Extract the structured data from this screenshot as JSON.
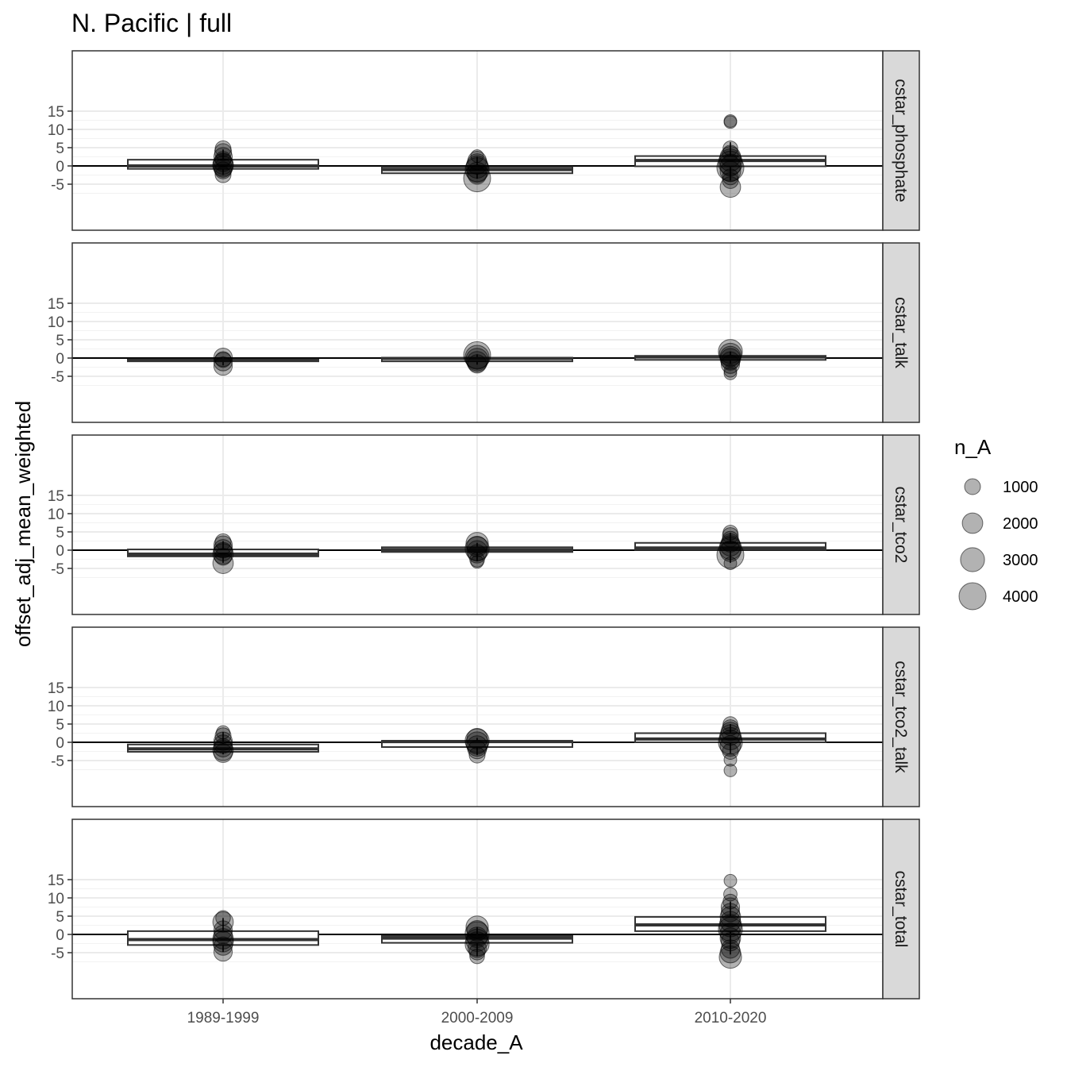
{
  "chart_data": {
    "type": "box-and-scatter (faceted)",
    "title": "N. Pacific | full",
    "xlabel": "decade_A",
    "ylabel": "offset_adj_mean_weighted",
    "categories": [
      "1989-1999",
      "2000-2009",
      "2010-2020"
    ],
    "ylim": [
      -8.5,
      15.5
    ],
    "y_ticks": [
      -5,
      0,
      5,
      10,
      15
    ],
    "y_tick_labels": [
      "-5",
      "0",
      "5",
      "10",
      "15"
    ],
    "reference_line_y": 0,
    "grid": true,
    "legend": {
      "title": "n_A",
      "position": "right",
      "entries": [
        {
          "label": "1000",
          "value": 1000
        },
        {
          "label": "2000",
          "value": 2000
        },
        {
          "label": "3000",
          "value": 3000
        },
        {
          "label": "4000",
          "value": 4000
        }
      ]
    },
    "facets": [
      {
        "name": "cstar_phosphate",
        "boxes": [
          {
            "category": "1989-1999",
            "q1": -0.8,
            "median": 0.0,
            "q3": 1.7,
            "whisker_low": -2.5,
            "whisker_high": 4.5
          },
          {
            "category": "2000-2009",
            "q1": -2.0,
            "median": -1.0,
            "q3": -0.3,
            "whisker_low": -3.5,
            "whisker_high": 2.5
          },
          {
            "category": "2010-2020",
            "q1": -0.1,
            "median": 1.5,
            "q3": 2.7,
            "whisker_low": -4.0,
            "whisker_high": 6.5
          }
        ],
        "points": [
          {
            "category": "1989-1999",
            "y": 4.7,
            "n": 1000
          },
          {
            "category": "1989-1999",
            "y": 3.8,
            "n": 1200
          },
          {
            "category": "1989-1999",
            "y": 2.5,
            "n": 1500
          },
          {
            "category": "1989-1999",
            "y": 1.8,
            "n": 1000
          },
          {
            "category": "1989-1999",
            "y": 1.0,
            "n": 1500
          },
          {
            "category": "1989-1999",
            "y": 0.5,
            "n": 2000
          },
          {
            "category": "1989-1999",
            "y": 0.0,
            "n": 2000
          },
          {
            "category": "1989-1999",
            "y": -0.6,
            "n": 1500
          },
          {
            "category": "1989-1999",
            "y": -1.2,
            "n": 1200
          },
          {
            "category": "1989-1999",
            "y": -2.4,
            "n": 1000
          },
          {
            "category": "2000-2009",
            "y": 2.7,
            "n": 500
          },
          {
            "category": "2000-2009",
            "y": 1.5,
            "n": 1500
          },
          {
            "category": "2000-2009",
            "y": 0.5,
            "n": 2000
          },
          {
            "category": "2000-2009",
            "y": -0.3,
            "n": 2500
          },
          {
            "category": "2000-2009",
            "y": -1.0,
            "n": 3000
          },
          {
            "category": "2000-2009",
            "y": -1.8,
            "n": 2000
          },
          {
            "category": "2000-2009",
            "y": -2.5,
            "n": 1500
          },
          {
            "category": "2000-2009",
            "y": -3.4,
            "n": 4000
          },
          {
            "category": "2010-2020",
            "y": 12.3,
            "n": 500
          },
          {
            "category": "2010-2020",
            "y": 12.0,
            "n": 500
          },
          {
            "category": "2010-2020",
            "y": 4.8,
            "n": 800
          },
          {
            "category": "2010-2020",
            "y": 3.5,
            "n": 1000
          },
          {
            "category": "2010-2020",
            "y": 2.5,
            "n": 2000
          },
          {
            "category": "2010-2020",
            "y": 1.6,
            "n": 2500
          },
          {
            "category": "2010-2020",
            "y": 0.8,
            "n": 3000
          },
          {
            "category": "2010-2020",
            "y": 0.0,
            "n": 2000
          },
          {
            "category": "2010-2020",
            "y": -0.5,
            "n": 4000
          },
          {
            "category": "2010-2020",
            "y": -1.5,
            "n": 2000
          },
          {
            "category": "2010-2020",
            "y": -3.0,
            "n": 1000
          },
          {
            "category": "2010-2020",
            "y": -4.0,
            "n": 1000
          },
          {
            "category": "2010-2020",
            "y": -5.8,
            "n": 2000
          }
        ]
      },
      {
        "name": "cstar_talk",
        "boxes": [
          {
            "category": "1989-1999",
            "q1": -0.9,
            "median": -0.6,
            "q3": -0.4,
            "whisker_low": -2.0,
            "whisker_high": 0.3
          },
          {
            "category": "2000-2009",
            "q1": -0.9,
            "median": -0.1,
            "q3": 0.1,
            "whisker_low": -1.8,
            "whisker_high": 1.0
          },
          {
            "category": "2010-2020",
            "q1": -0.5,
            "median": 0.3,
            "q3": 0.6,
            "whisker_low": -1.6,
            "whisker_high": 1.8
          }
        ],
        "points": [
          {
            "category": "1989-1999",
            "y": 0.2,
            "n": 1500
          },
          {
            "category": "1989-1999",
            "y": -0.4,
            "n": 1000
          },
          {
            "category": "1989-1999",
            "y": -1.0,
            "n": 1500
          },
          {
            "category": "1989-1999",
            "y": -2.2,
            "n": 1500
          },
          {
            "category": "2000-2009",
            "y": 0.8,
            "n": 4000
          },
          {
            "category": "2000-2009",
            "y": 0.2,
            "n": 3000
          },
          {
            "category": "2000-2009",
            "y": -0.4,
            "n": 2500
          },
          {
            "category": "2000-2009",
            "y": -1.0,
            "n": 2000
          },
          {
            "category": "2000-2009",
            "y": -1.6,
            "n": 1500
          },
          {
            "category": "2010-2020",
            "y": 1.8,
            "n": 3000
          },
          {
            "category": "2010-2020",
            "y": 1.0,
            "n": 2500
          },
          {
            "category": "2010-2020",
            "y": 0.4,
            "n": 2000
          },
          {
            "category": "2010-2020",
            "y": -0.2,
            "n": 2000
          },
          {
            "category": "2010-2020",
            "y": -0.8,
            "n": 1500
          },
          {
            "category": "2010-2020",
            "y": -1.7,
            "n": 1500
          },
          {
            "category": "2010-2020",
            "y": -3.5,
            "n": 500
          },
          {
            "category": "2010-2020",
            "y": -4.2,
            "n": 500
          }
        ]
      },
      {
        "name": "cstar_tco2",
        "boxes": [
          {
            "category": "1989-1999",
            "q1": -1.7,
            "median": -1.1,
            "q3": 0.2,
            "whisker_low": -3.5,
            "whisker_high": 2.5
          },
          {
            "category": "2000-2009",
            "q1": -0.5,
            "median": 0.1,
            "q3": 0.8,
            "whisker_low": -3.0,
            "whisker_high": 2.0
          },
          {
            "category": "2010-2020",
            "q1": 0.1,
            "median": 0.6,
            "q3": 2.0,
            "whisker_low": -3.5,
            "whisker_high": 4.8
          }
        ],
        "points": [
          {
            "category": "1989-1999",
            "y": 2.3,
            "n": 1000
          },
          {
            "category": "1989-1999",
            "y": 1.4,
            "n": 1500
          },
          {
            "category": "1989-1999",
            "y": 0.4,
            "n": 1500
          },
          {
            "category": "1989-1999",
            "y": -0.4,
            "n": 1500
          },
          {
            "category": "1989-1999",
            "y": -1.0,
            "n": 2000
          },
          {
            "category": "1989-1999",
            "y": -1.8,
            "n": 1200
          },
          {
            "category": "1989-1999",
            "y": -3.6,
            "n": 2000
          },
          {
            "category": "2000-2009",
            "y": 1.8,
            "n": 2500
          },
          {
            "category": "2000-2009",
            "y": 1.0,
            "n": 2000
          },
          {
            "category": "2000-2009",
            "y": 0.4,
            "n": 3000
          },
          {
            "category": "2000-2009",
            "y": -0.2,
            "n": 2000
          },
          {
            "category": "2000-2009",
            "y": -1.0,
            "n": 1500
          },
          {
            "category": "2000-2009",
            "y": -2.6,
            "n": 800
          },
          {
            "category": "2000-2009",
            "y": -3.2,
            "n": 500
          },
          {
            "category": "2010-2020",
            "y": 4.8,
            "n": 800
          },
          {
            "category": "2010-2020",
            "y": 4.0,
            "n": 1000
          },
          {
            "category": "2010-2020",
            "y": 3.0,
            "n": 1000
          },
          {
            "category": "2010-2020",
            "y": 2.0,
            "n": 1500
          },
          {
            "category": "2010-2020",
            "y": 1.2,
            "n": 2000
          },
          {
            "category": "2010-2020",
            "y": 0.5,
            "n": 2500
          },
          {
            "category": "2010-2020",
            "y": -0.3,
            "n": 2000
          },
          {
            "category": "2010-2020",
            "y": -1.3,
            "n": 4000
          },
          {
            "category": "2010-2020",
            "y": -3.6,
            "n": 500
          }
        ]
      },
      {
        "name": "cstar_tco2_talk",
        "boxes": [
          {
            "category": "1989-1999",
            "q1": -2.6,
            "median": -1.8,
            "q3": -0.6,
            "whisker_low": -3.3,
            "whisker_high": 2.8
          },
          {
            "category": "2000-2009",
            "q1": -1.3,
            "median": 0.2,
            "q3": 0.4,
            "whisker_low": -3.5,
            "whisker_high": 1.2
          },
          {
            "category": "2010-2020",
            "q1": 0.0,
            "median": 0.9,
            "q3": 2.5,
            "whisker_low": -3.0,
            "whisker_high": 5.0
          }
        ],
        "points": [
          {
            "category": "1989-1999",
            "y": 2.7,
            "n": 600
          },
          {
            "category": "1989-1999",
            "y": 1.8,
            "n": 1000
          },
          {
            "category": "1989-1999",
            "y": 0.3,
            "n": 1500
          },
          {
            "category": "1989-1999",
            "y": -0.5,
            "n": 1500
          },
          {
            "category": "1989-1999",
            "y": -1.5,
            "n": 1500
          },
          {
            "category": "1989-1999",
            "y": -2.2,
            "n": 2000
          },
          {
            "category": "1989-1999",
            "y": -3.0,
            "n": 1500
          },
          {
            "category": "2000-2009",
            "y": 1.0,
            "n": 2000
          },
          {
            "category": "2000-2009",
            "y": 0.4,
            "n": 3000
          },
          {
            "category": "2000-2009",
            "y": -0.2,
            "n": 2500
          },
          {
            "category": "2000-2009",
            "y": -1.0,
            "n": 2000
          },
          {
            "category": "2000-2009",
            "y": -2.0,
            "n": 1500
          },
          {
            "category": "2000-2009",
            "y": -3.5,
            "n": 1000
          },
          {
            "category": "2010-2020",
            "y": 5.0,
            "n": 800
          },
          {
            "category": "2010-2020",
            "y": 4.0,
            "n": 1000
          },
          {
            "category": "2010-2020",
            "y": 3.0,
            "n": 1500
          },
          {
            "category": "2010-2020",
            "y": 2.0,
            "n": 2000
          },
          {
            "category": "2010-2020",
            "y": 1.0,
            "n": 2500
          },
          {
            "category": "2010-2020",
            "y": 0.0,
            "n": 3000
          },
          {
            "category": "2010-2020",
            "y": -1.0,
            "n": 2000
          },
          {
            "category": "2010-2020",
            "y": -2.5,
            "n": 1000
          },
          {
            "category": "2010-2020",
            "y": -4.8,
            "n": 500
          },
          {
            "category": "2010-2020",
            "y": -7.7,
            "n": 500
          }
        ]
      },
      {
        "name": "cstar_total",
        "boxes": [
          {
            "category": "1989-1999",
            "q1": -2.9,
            "median": -1.4,
            "q3": 0.9,
            "whisker_low": -4.8,
            "whisker_high": 4.5
          },
          {
            "category": "2000-2009",
            "q1": -2.3,
            "median": -1.0,
            "q3": -0.4,
            "whisker_low": -6.0,
            "whisker_high": 2.0
          },
          {
            "category": "2010-2020",
            "q1": 0.9,
            "median": 2.6,
            "q3": 4.8,
            "whisker_low": -5.5,
            "whisker_high": 9.0
          }
        ],
        "points": [
          {
            "category": "1989-1999",
            "y": 4.5,
            "n": 800
          },
          {
            "category": "1989-1999",
            "y": 3.4,
            "n": 2000
          },
          {
            "category": "1989-1999",
            "y": 1.2,
            "n": 1500
          },
          {
            "category": "1989-1999",
            "y": 0.0,
            "n": 1500
          },
          {
            "category": "1989-1999",
            "y": -1.2,
            "n": 2000
          },
          {
            "category": "1989-1999",
            "y": -2.0,
            "n": 2000
          },
          {
            "category": "1989-1999",
            "y": -3.2,
            "n": 1500
          },
          {
            "category": "1989-1999",
            "y": -4.8,
            "n": 1500
          },
          {
            "category": "2000-2009",
            "y": 2.0,
            "n": 2500
          },
          {
            "category": "2000-2009",
            "y": 1.0,
            "n": 2000
          },
          {
            "category": "2000-2009",
            "y": 0.2,
            "n": 3000
          },
          {
            "category": "2000-2009",
            "y": -0.8,
            "n": 2000
          },
          {
            "category": "2000-2009",
            "y": -1.6,
            "n": 2500
          },
          {
            "category": "2000-2009",
            "y": -2.6,
            "n": 3000
          },
          {
            "category": "2000-2009",
            "y": -3.8,
            "n": 1500
          },
          {
            "category": "2000-2009",
            "y": -4.8,
            "n": 1000
          },
          {
            "category": "2000-2009",
            "y": -6.0,
            "n": 800
          },
          {
            "category": "2010-2020",
            "y": 14.7,
            "n": 500
          },
          {
            "category": "2010-2020",
            "y": 11.0,
            "n": 600
          },
          {
            "category": "2010-2020",
            "y": 9.0,
            "n": 800
          },
          {
            "category": "2010-2020",
            "y": 7.5,
            "n": 1500
          },
          {
            "category": "2010-2020",
            "y": 6.0,
            "n": 1500
          },
          {
            "category": "2010-2020",
            "y": 4.8,
            "n": 2000
          },
          {
            "category": "2010-2020",
            "y": 3.5,
            "n": 2000
          },
          {
            "category": "2010-2020",
            "y": 2.4,
            "n": 2500
          },
          {
            "category": "2010-2020",
            "y": 1.4,
            "n": 3000
          },
          {
            "category": "2010-2020",
            "y": 0.3,
            "n": 2000
          },
          {
            "category": "2010-2020",
            "y": -1.0,
            "n": 2000
          },
          {
            "category": "2010-2020",
            "y": -2.0,
            "n": 1500
          },
          {
            "category": "2010-2020",
            "y": -4.0,
            "n": 1500
          },
          {
            "category": "2010-2020",
            "y": -5.0,
            "n": 2000
          },
          {
            "category": "2010-2020",
            "y": -6.2,
            "n": 2500
          }
        ]
      }
    ]
  }
}
